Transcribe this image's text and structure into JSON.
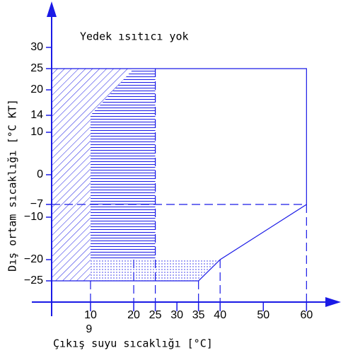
{
  "chart_data": {
    "type": "envelope",
    "annotation": "Yedek ısıtıcı yok",
    "xlabel": "Çıkış suyu sıcaklığı [°C]",
    "ylabel": "Dış ortam sıcaklığı [°C KT]",
    "color": "#1a1ae6",
    "xlim": [
      1,
      66
    ],
    "ylim": [
      -30,
      40
    ],
    "xticks": [
      10,
      20,
      25,
      30,
      35,
      40,
      50,
      60
    ],
    "xticks2": [
      9
    ],
    "yticks": [
      30,
      25,
      20,
      14,
      10,
      0,
      {
        "value": -7,
        "label": "−7"
      },
      {
        "value": -10,
        "label": "−10"
      },
      {
        "value": -20,
        "label": "−20"
      },
      {
        "value": -25,
        "label": "−25"
      }
    ],
    "regions": [
      {
        "pattern": "diagonal",
        "x": [
          1,
          20,
          10,
          10,
          1
        ],
        "y": [
          25,
          25,
          14,
          -25,
          -25
        ]
      },
      {
        "pattern": "horizontal",
        "x": [
          10,
          20,
          25,
          25,
          10
        ],
        "y": [
          14,
          25,
          25,
          -20,
          -20
        ]
      },
      {
        "pattern": "dots",
        "x": [
          10,
          40,
          35,
          10
        ],
        "y": [
          -20,
          -20,
          -25,
          -25
        ]
      }
    ],
    "outline": {
      "x": [
        1,
        60,
        60,
        40,
        35,
        1
      ],
      "y": [
        25,
        25,
        -7,
        -20,
        -25,
        -25
      ]
    },
    "dashed": [
      {
        "x": [
          1,
          60
        ],
        "y": [
          -7,
          -7
        ]
      },
      {
        "x": [
          60,
          60
        ],
        "y": [
          -7,
          -30
        ]
      },
      {
        "x": [
          40,
          40
        ],
        "y": [
          -20,
          -30
        ]
      },
      {
        "x": [
          35,
          35
        ],
        "y": [
          -25,
          -30
        ]
      },
      {
        "x": [
          25,
          25
        ],
        "y": [
          25,
          -30
        ]
      },
      {
        "x": [
          20,
          20
        ],
        "y": [
          -20,
          -30
        ]
      },
      {
        "x": [
          10,
          10
        ],
        "y": [
          -25,
          -30
        ]
      }
    ]
  }
}
